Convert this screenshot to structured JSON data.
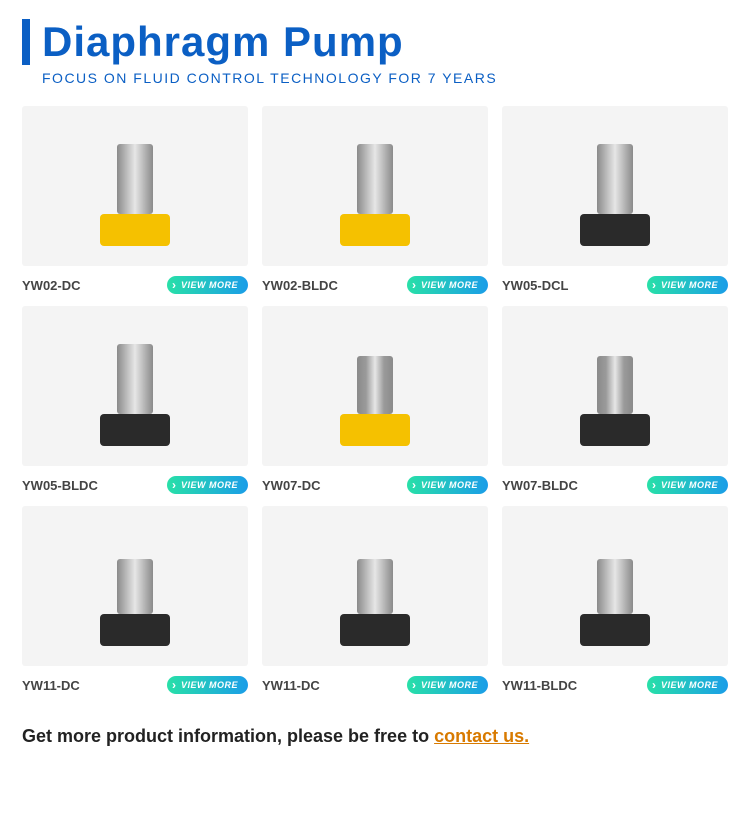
{
  "header": {
    "title": "Diaphragm Pump",
    "subtitle": "FOCUS ON FLUID CONTROL TECHNOLOGY FOR 7 YEARS"
  },
  "grid": {
    "view_label": "VIEW MORE",
    "items": [
      {
        "label": "YW02-DC",
        "base": "yellow",
        "motor_h": 70,
        "motor_fill": "#b8b8b8"
      },
      {
        "label": "YW02-BLDC",
        "base": "yellow",
        "motor_h": 70,
        "motor_fill": "#b8b8b8"
      },
      {
        "label": "YW05-DCL",
        "base": "black",
        "motor_h": 70,
        "motor_fill": "#b8b8b8"
      },
      {
        "label": "YW05-BLDC",
        "base": "black",
        "motor_h": 70,
        "motor_fill": "#b8b8b8"
      },
      {
        "label": "YW07-DC",
        "base": "yellow",
        "motor_h": 58,
        "motor_fill": "#9a9a9a"
      },
      {
        "label": "YW07-BLDC",
        "base": "black",
        "motor_h": 58,
        "motor_fill": "#9a9a9a"
      },
      {
        "label": "YW11-DC",
        "base": "black",
        "motor_h": 55,
        "motor_fill": "#b8b8b8"
      },
      {
        "label": "YW11-DC",
        "base": "black",
        "motor_h": 55,
        "motor_fill": "#b8b8b8"
      },
      {
        "label": "YW11-BLDC",
        "base": "black",
        "motor_h": 55,
        "motor_fill": "#b8b8b8"
      }
    ]
  },
  "footer": {
    "prefix": "Get more product information, please be free to ",
    "link_text": "contact us."
  },
  "colors": {
    "brand_blue": "#0b5fc4",
    "card_bg": "#f4f4f4",
    "btn_grad_start": "#28e0a8",
    "btn_grad_end": "#1a9de8",
    "link_color": "#d87a00"
  }
}
